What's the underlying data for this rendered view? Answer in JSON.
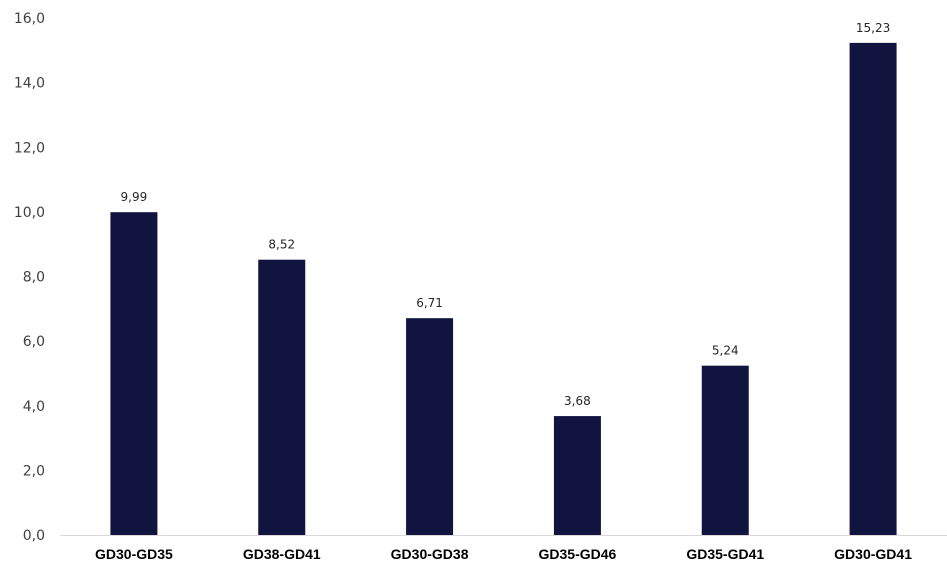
{
  "chart_data": {
    "type": "bar",
    "title": "",
    "xlabel": "",
    "ylabel": "",
    "categories": [
      "GD30-GD35",
      "GD38-GD41",
      "GD30-GD38",
      "GD35-GD46",
      "GD35-GD41",
      "GD30-GD41"
    ],
    "values": [
      9.99,
      8.52,
      6.71,
      3.68,
      5.24,
      15.23
    ],
    "value_labels": [
      "9,99",
      "8,52",
      "6,71",
      "3,68",
      "5,24",
      "15,23"
    ],
    "yticks": [
      0,
      2,
      4,
      6,
      8,
      10,
      12,
      14,
      16
    ],
    "ytick_labels": [
      "0,0",
      "2,0",
      "4,0",
      "6,0",
      "8,0",
      "10,0",
      "12,0",
      "14,0",
      "16,0"
    ],
    "ylim": [
      0,
      16
    ],
    "grid": false,
    "legend": "none",
    "bar_color": "#10143f",
    "axis_color": "#d9d9d9"
  }
}
